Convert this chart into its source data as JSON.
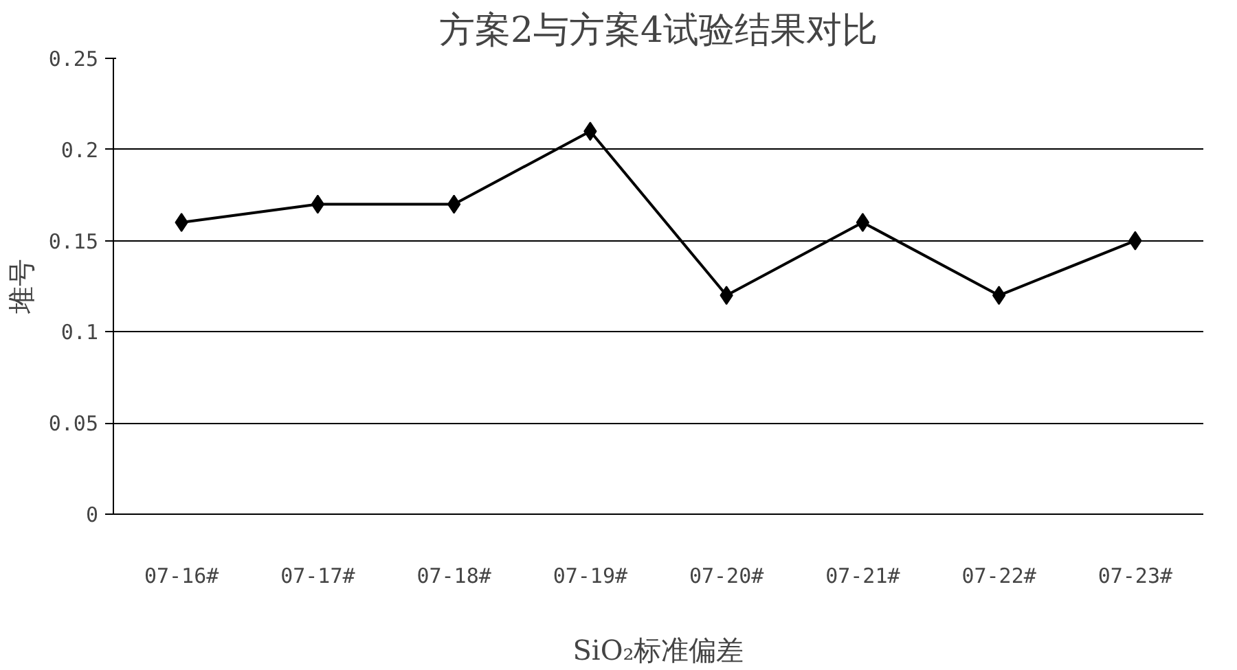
{
  "chart_data": {
    "type": "line",
    "title": "方案2与方案4试验结果对比",
    "xlabel": "SiO₂标准偏差",
    "ylabel": "堆号",
    "categories": [
      "07-16#",
      "07-17#",
      "07-18#",
      "07-19#",
      "07-20#",
      "07-21#",
      "07-22#",
      "07-23#"
    ],
    "series": [
      {
        "color": "#000000",
        "values": [
          0.16,
          0.17,
          0.17,
          0.21,
          0.12,
          0.16,
          0.12,
          0.15
        ]
      }
    ],
    "ylim": [
      0,
      0.25
    ],
    "yticks": [
      {
        "value": 0,
        "label": "0"
      },
      {
        "value": 0.05,
        "label": "0.05"
      },
      {
        "value": 0.1,
        "label": "0.1"
      },
      {
        "value": 0.15,
        "label": "0.15"
      },
      {
        "value": 0.2,
        "label": "0.2"
      },
      {
        "value": 0.25,
        "label": "0.25"
      }
    ],
    "grid": "y",
    "marker": "diamond",
    "line_style": "solid"
  }
}
